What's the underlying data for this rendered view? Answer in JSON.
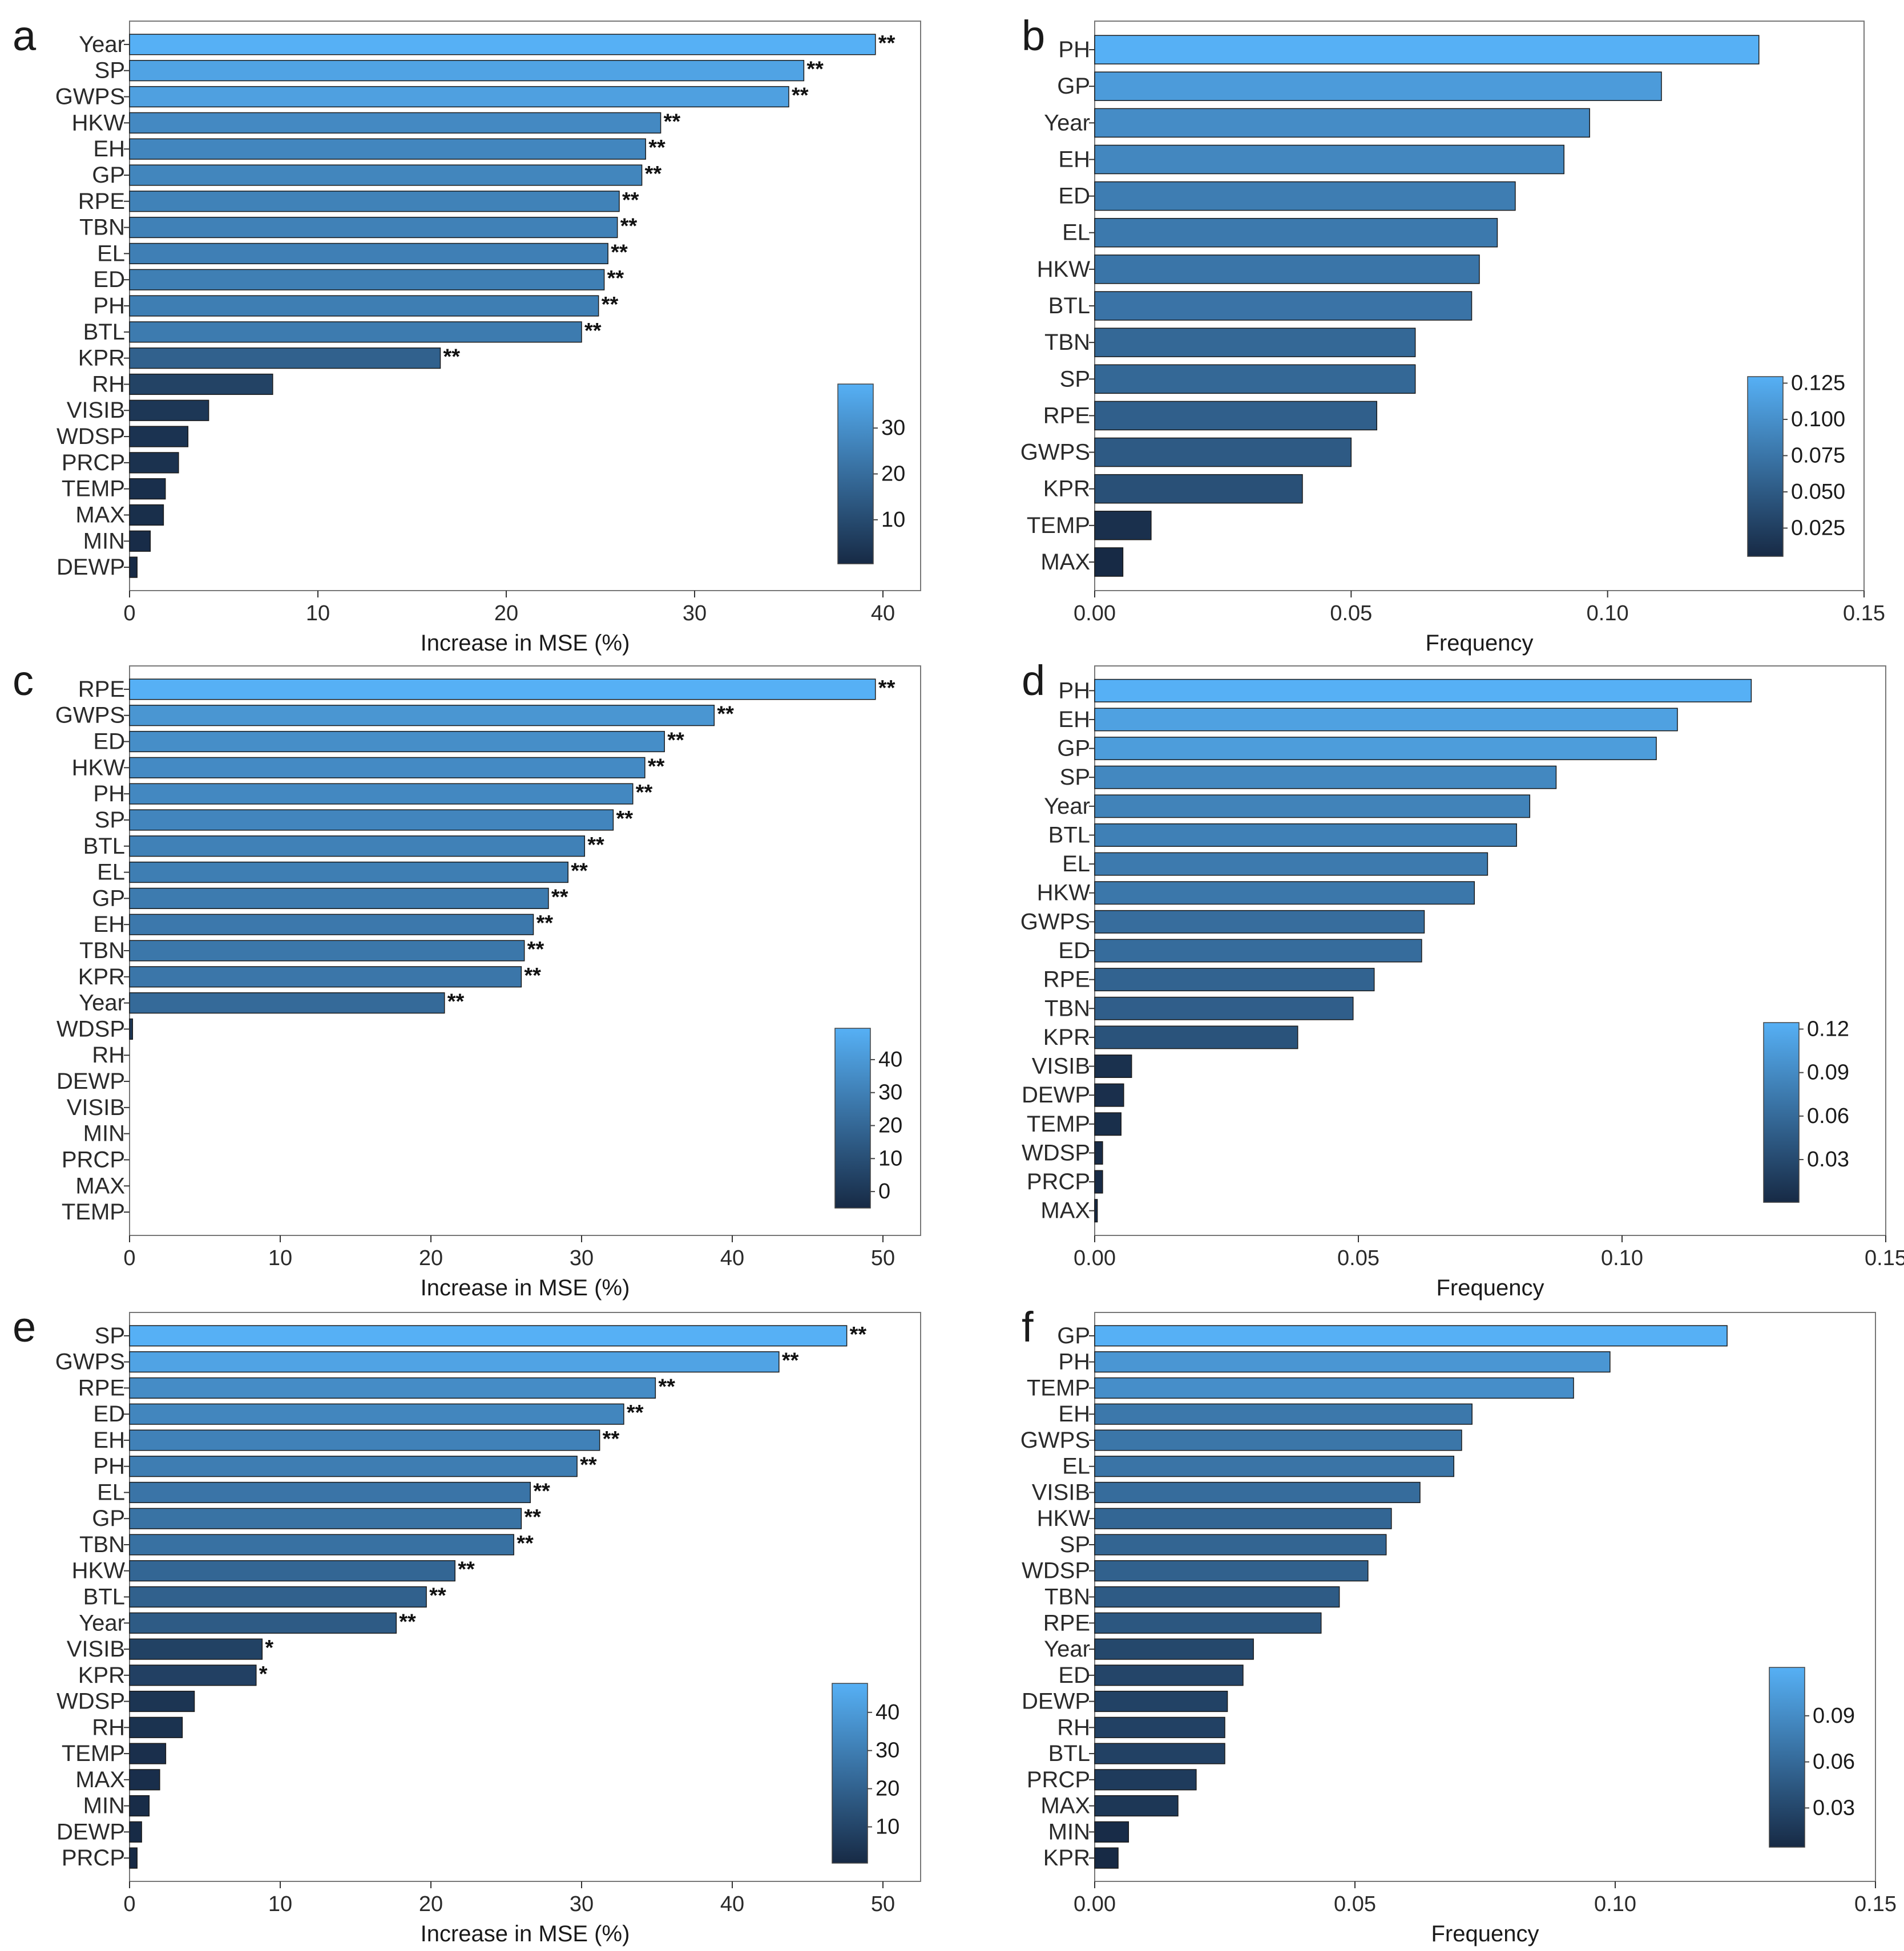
{
  "colors": {
    "low": "#172a45",
    "high": "#56b0f5",
    "bar_outline": "#1a1a1a",
    "axis": "#333333",
    "text": "#1a1a1a"
  },
  "chart_data": [
    {
      "panel_label": "a",
      "type": "bar",
      "orientation": "horizontal",
      "categories": [
        "Year",
        "SP",
        "GWPS",
        "HKW",
        "EH",
        "GP",
        "RPE",
        "TBN",
        "EL",
        "ED",
        "PH",
        "BTL",
        "KPR",
        "RH",
        "VISIB",
        "WDSP",
        "PRCP",
        "TEMP",
        "MAX",
        "MIN",
        "DEWP"
      ],
      "values": [
        39.6,
        35.8,
        35.0,
        28.2,
        27.4,
        27.2,
        26.0,
        25.9,
        25.4,
        25.2,
        24.9,
        24.0,
        16.5,
        7.6,
        4.2,
        3.1,
        2.6,
        1.9,
        1.8,
        1.1,
        0.4
      ],
      "annotations": [
        "**",
        "**",
        "**",
        "**",
        "**",
        "**",
        "**",
        "**",
        "**",
        "**",
        "**",
        "**",
        "**",
        "",
        "",
        "",
        "",
        "",
        "",
        "",
        ""
      ],
      "xlabel": "Increase in MSE (%)",
      "xlim": [
        0,
        42
      ],
      "xticks": [
        0,
        10,
        20,
        30,
        40
      ],
      "xtick_labels": [
        "0",
        "10",
        "20",
        "30",
        "40"
      ],
      "colorbar": {
        "range": [
          0.4,
          39.6
        ],
        "ticks": [
          10,
          20,
          30
        ],
        "tick_labels": [
          "10",
          "20",
          "30"
        ],
        "placement": "bottom-right"
      }
    },
    {
      "panel_label": "b",
      "type": "bar",
      "orientation": "horizontal",
      "categories": [
        "PH",
        "GP",
        "Year",
        "EH",
        "ED",
        "EL",
        "HKW",
        "BTL",
        "TBN",
        "SP",
        "RPE",
        "GWPS",
        "KPR",
        "TEMP",
        "MAX"
      ],
      "values": [
        0.1295,
        0.1105,
        0.0965,
        0.0915,
        0.082,
        0.0785,
        0.075,
        0.0735,
        0.0625,
        0.0625,
        0.055,
        0.05,
        0.0405,
        0.011,
        0.0055
      ],
      "xlabel": "Frequency",
      "xlim": [
        0,
        0.15
      ],
      "xticks": [
        0,
        0.05,
        0.1,
        0.15
      ],
      "xtick_labels": [
        "0.00",
        "0.05",
        "0.10",
        "0.15"
      ],
      "colorbar": {
        "range": [
          0.0055,
          0.1295
        ],
        "ticks": [
          0.025,
          0.05,
          0.075,
          0.1,
          0.125
        ],
        "tick_labels": [
          "0.025",
          "0.050",
          "0.075",
          "0.100",
          "0.125"
        ],
        "placement": "bottom-right"
      }
    },
    {
      "panel_label": "c",
      "type": "bar",
      "orientation": "horizontal",
      "categories": [
        "RPE",
        "GWPS",
        "ED",
        "HKW",
        "PH",
        "SP",
        "BTL",
        "EL",
        "GP",
        "EH",
        "TBN",
        "KPR",
        "Year",
        "WDSP",
        "RH",
        "DEWP",
        "VISIB",
        "MIN",
        "PRCP",
        "MAX",
        "TEMP"
      ],
      "values": [
        49.5,
        38.8,
        35.5,
        34.2,
        33.4,
        32.1,
        30.2,
        29.1,
        27.8,
        26.8,
        26.2,
        26.0,
        20.9,
        0.2,
        0,
        0,
        0,
        0,
        0,
        0,
        0
      ],
      "annotations": [
        "**",
        "**",
        "**",
        "**",
        "**",
        "**",
        "**",
        "**",
        "**",
        "**",
        "**",
        "**",
        "**",
        "",
        "",
        "",
        "",
        "",
        "",
        "",
        ""
      ],
      "xlabel": "Increase in MSE (%)",
      "xlim": [
        0,
        52.5
      ],
      "xticks": [
        0,
        10,
        20,
        30,
        40,
        50
      ],
      "xtick_labels": [
        "0",
        "10",
        "20",
        "30",
        "40",
        "50"
      ],
      "colorbar": {
        "range": [
          -5,
          49.5
        ],
        "ticks": [
          0,
          10,
          20,
          30,
          40
        ],
        "tick_labels": [
          "0",
          "10",
          "20",
          "30",
          "40"
        ],
        "placement": "bottom-right"
      }
    },
    {
      "panel_label": "d",
      "type": "bar",
      "orientation": "horizontal",
      "categories": [
        "PH",
        "EH",
        "GP",
        "SP",
        "Year",
        "BTL",
        "EL",
        "HKW",
        "GWPS",
        "ED",
        "RPE",
        "TBN",
        "KPR",
        "VISIB",
        "DEWP",
        "TEMP",
        "WDSP",
        "PRCP",
        "MAX"
      ],
      "values": [
        0.1245,
        0.1105,
        0.1065,
        0.0875,
        0.0825,
        0.08,
        0.0745,
        0.072,
        0.0625,
        0.062,
        0.053,
        0.049,
        0.0385,
        0.007,
        0.0055,
        0.005,
        0.0015,
        0.0015,
        0.0005
      ],
      "xlabel": "Frequency",
      "xlim": [
        0,
        0.15
      ],
      "xticks": [
        0,
        0.05,
        0.1,
        0.15
      ],
      "xtick_labels": [
        "0.00",
        "0.05",
        "0.10",
        "0.15"
      ],
      "colorbar": {
        "range": [
          0.0005,
          0.1245
        ],
        "ticks": [
          0.03,
          0.06,
          0.09,
          0.12
        ],
        "tick_labels": [
          "0.03",
          "0.06",
          "0.09",
          "0.12"
        ],
        "placement": "bottom-right"
      }
    },
    {
      "panel_label": "e",
      "type": "bar",
      "orientation": "horizontal",
      "categories": [
        "SP",
        "GWPS",
        "RPE",
        "ED",
        "EH",
        "PH",
        "EL",
        "GP",
        "TBN",
        "HKW",
        "BTL",
        "Year",
        "VISIB",
        "KPR",
        "WDSP",
        "RH",
        "TEMP",
        "MAX",
        "MIN",
        "DEWP",
        "PRCP"
      ],
      "values": [
        47.6,
        43.1,
        34.9,
        32.8,
        31.2,
        29.7,
        26.6,
        26.0,
        25.5,
        21.6,
        19.7,
        17.7,
        8.8,
        8.4,
        4.3,
        3.5,
        2.4,
        2.0,
        1.3,
        0.8,
        0.5
      ],
      "annotations": [
        "**",
        "**",
        "**",
        "**",
        "**",
        "**",
        "**",
        "**",
        "**",
        "**",
        "**",
        "**",
        "*",
        "*",
        "",
        "",
        "",
        "",
        "",
        "",
        ""
      ],
      "xlabel": "Increase in MSE (%)",
      "xlim": [
        0,
        52.5
      ],
      "xticks": [
        0,
        10,
        20,
        30,
        40,
        50
      ],
      "xtick_labels": [
        "0",
        "10",
        "20",
        "30",
        "40",
        "50"
      ],
      "colorbar": {
        "range": [
          0.5,
          47.6
        ],
        "ticks": [
          10,
          20,
          30,
          40
        ],
        "tick_labels": [
          "10",
          "20",
          "30",
          "40"
        ],
        "placement": "bottom-right"
      }
    },
    {
      "panel_label": "f",
      "type": "bar",
      "orientation": "horizontal",
      "categories": [
        "GP",
        "PH",
        "TEMP",
        "EH",
        "GWPS",
        "EL",
        "VISIB",
        "HKW",
        "SP",
        "WDSP",
        "TBN",
        "RPE",
        "Year",
        "ED",
        "DEWP",
        "RH",
        "BTL",
        "PRCP",
        "MAX",
        "MIN",
        "KPR"
      ],
      "values": [
        0.1215,
        0.099,
        0.092,
        0.0725,
        0.0705,
        0.069,
        0.0625,
        0.057,
        0.056,
        0.0525,
        0.047,
        0.0435,
        0.0305,
        0.0285,
        0.0255,
        0.025,
        0.025,
        0.0195,
        0.016,
        0.0065,
        0.0045
      ],
      "xlabel": "Frequency",
      "xlim": [
        0,
        0.15
      ],
      "xticks": [
        0,
        0.05,
        0.1,
        0.15
      ],
      "xtick_labels": [
        "0.00",
        "0.05",
        "0.10",
        "0.15"
      ],
      "colorbar": {
        "range": [
          0.0045,
          0.1215
        ],
        "ticks": [
          0.03,
          0.06,
          0.09
        ],
        "tick_labels": [
          "0.03",
          "0.06",
          "0.09"
        ],
        "placement": "bottom-right"
      }
    }
  ]
}
